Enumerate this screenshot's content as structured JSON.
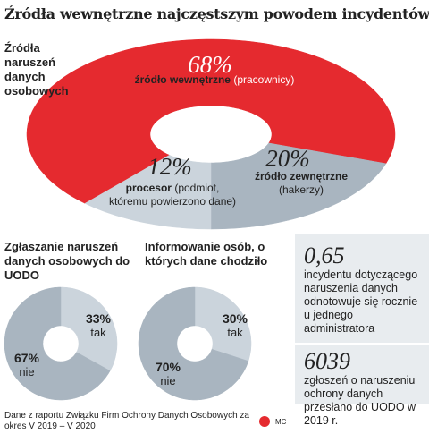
{
  "title": "Źródła wewnętrzne najczęstszym powodem incydentów",
  "chart_data": [
    {
      "type": "donut",
      "title": "Źródła naruszeń danych osobowych",
      "categories": [
        "źródło wewnętrzne",
        "źródło zewnętrzne",
        "procesor"
      ],
      "descriptions": [
        "(pracownicy)",
        "(hakerzy)",
        "(podmiot, któremu powierzono dane)"
      ],
      "values": [
        68,
        20,
        12
      ],
      "value_labels": [
        "68%",
        "20%",
        "12%"
      ],
      "colors": [
        "#e52a2f",
        "#a9b5c0",
        "#cbd4dc"
      ]
    },
    {
      "type": "donut",
      "title": "Zgłaszanie naruszeń danych osobowych do UODO",
      "categories": [
        "tak",
        "nie"
      ],
      "values": [
        33,
        67
      ],
      "value_labels": [
        "33%",
        "67%"
      ],
      "colors": [
        "#cbd4dc",
        "#a9b5c0"
      ]
    },
    {
      "type": "donut",
      "title": "Informowanie osób, o których dane chodziło",
      "categories": [
        "tak",
        "nie"
      ],
      "values": [
        30,
        70
      ],
      "value_labels": [
        "30%",
        "70%"
      ],
      "colors": [
        "#cbd4dc",
        "#a9b5c0"
      ]
    }
  ],
  "stats": [
    {
      "value": "0,65",
      "text": "incydentu dotyczącego naruszenia danych odnotowuje się rocznie u jednego administratora"
    },
    {
      "value": "6039",
      "text": "zgłoszeń o naruszeniu ochrony danych przesłano do UODO w 2019 r."
    }
  ],
  "source": "Dane z raportu Związku Firm Ochrony Danych Osobowych za okres V 2019 – V 2020",
  "credit": "MC"
}
